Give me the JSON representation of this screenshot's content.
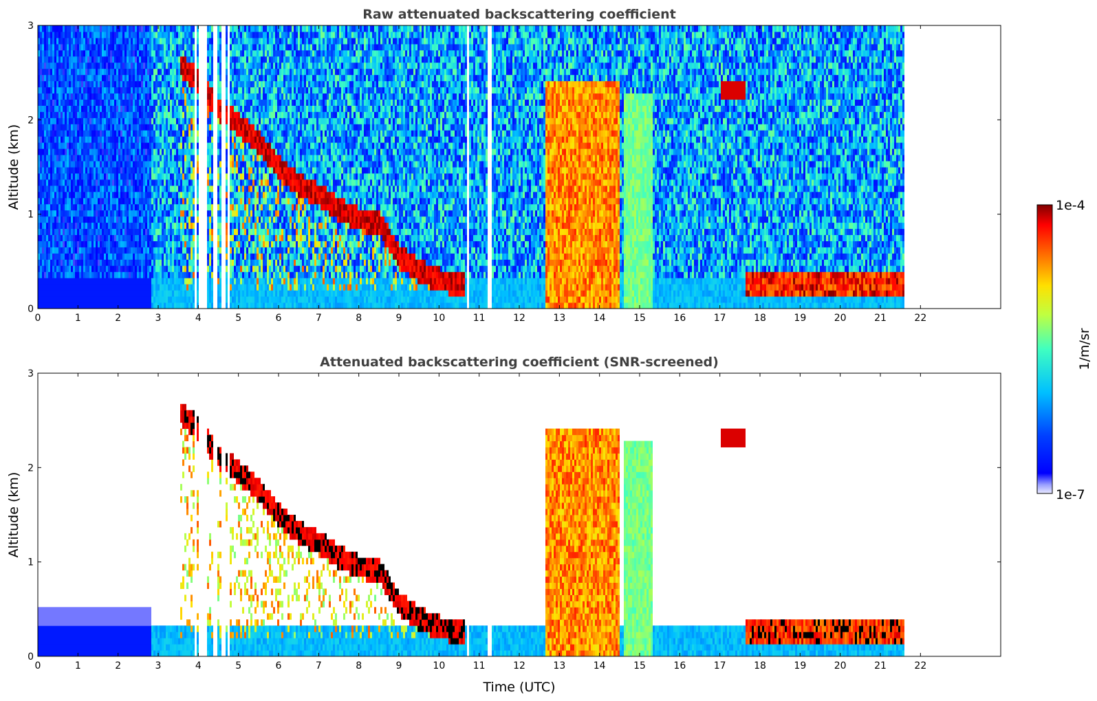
{
  "chart_data": [
    {
      "type": "heatmap",
      "title": "Raw attenuated backscattering coefficient",
      "xlabel": "",
      "ylabel": "Altitude (km)",
      "xlim": [
        0,
        24
      ],
      "ylim": [
        0,
        3
      ],
      "xticks": [
        "0",
        "1",
        "2",
        "3",
        "4",
        "5",
        "6",
        "7",
        "8",
        "9",
        "10",
        "11",
        "12",
        "13",
        "14",
        "15",
        "16",
        "17",
        "18",
        "19",
        "20",
        "21",
        "22"
      ],
      "yticks": [
        "0",
        "1",
        "2",
        "3"
      ],
      "data_end_time": 21.65,
      "layers": [
        {
          "name": "descending aerosol/cloud layer",
          "x": [
            3.5,
            4.0,
            4.5,
            5.0,
            5.5,
            6.0,
            6.5,
            7.0,
            7.5,
            8.0,
            8.5,
            9.0,
            9.5,
            10.0,
            10.6
          ],
          "y": [
            2.6,
            2.4,
            2.1,
            1.95,
            1.75,
            1.5,
            1.3,
            1.2,
            1.05,
            0.95,
            0.9,
            0.55,
            0.4,
            0.3,
            0.25
          ]
        },
        {
          "name": "dense cloud block",
          "x_range": [
            12.65,
            14.5
          ],
          "y_range": [
            0,
            2.4
          ]
        },
        {
          "name": "low cloud layer",
          "x_range": [
            17.6,
            21.65
          ],
          "y_range": [
            0.1,
            0.4
          ]
        },
        {
          "name": "upper layer",
          "x": [
            17.0,
            17.6
          ],
          "y": [
            2.35,
            2.2
          ]
        }
      ],
      "gaps_time": [
        3.9,
        4.05,
        4.15,
        4.4,
        4.6,
        4.72,
        10.7,
        11.25
      ]
    },
    {
      "type": "heatmap",
      "title": "Attenuated backscattering coefficient (SNR-screened)",
      "xlabel": "Time (UTC)",
      "ylabel": "Altitude (km)",
      "xlim": [
        0,
        24
      ],
      "ylim": [
        0,
        3
      ],
      "xticks": [
        "0",
        "1",
        "2",
        "3",
        "4",
        "5",
        "6",
        "7",
        "8",
        "9",
        "10",
        "11",
        "12",
        "13",
        "14",
        "15",
        "16",
        "17",
        "18",
        "19",
        "20",
        "21",
        "22"
      ],
      "yticks": [
        "0",
        "1",
        "2",
        "3"
      ],
      "data_end_time": 21.65
    }
  ],
  "colorbar": {
    "label": "1/m/sr",
    "max_label": "1e-4",
    "min_label": "1e-7",
    "scale": "log",
    "colormap": "jet"
  }
}
